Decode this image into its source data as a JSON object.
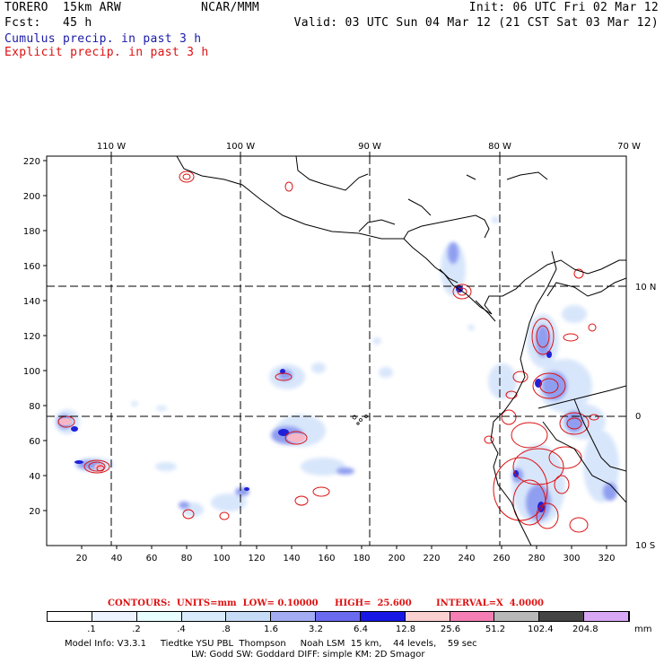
{
  "header": {
    "left1": "TORERO  15km ARW",
    "center1": "NCAR/MMM",
    "right1": "Init: 06 UTC Fri 02 Mar 12",
    "left2": "Fcst:   45 h",
    "right2": "Valid: 03 UTC Sun 04 Mar 12 (21 CST Sat 03 Mar 12)",
    "legend_cumulus": "Cumulus precip. in past 3 h",
    "legend_explicit": "Explicit precip. in past 3 h"
  },
  "colors": {
    "cumulus": "#1a1aa8",
    "explicit": "#dd1111",
    "coast": "#000000"
  },
  "map": {
    "top_lon_labels": [
      "110 W",
      "100 W",
      "90 W",
      "80 W",
      "70 W"
    ],
    "right_lat_labels": [
      "10 N",
      "0",
      "10 S"
    ],
    "y_ticks": [
      "20",
      "40",
      "60",
      "80",
      "100",
      "120",
      "140",
      "160",
      "180",
      "200",
      "220"
    ],
    "x_ticks": [
      "20",
      "40",
      "60",
      "80",
      "100",
      "120",
      "140",
      "160",
      "180",
      "200",
      "220",
      "240",
      "260",
      "280",
      "300",
      "320"
    ]
  },
  "contour_caption": {
    "units": "CONTOURS:  UNITS=mm  LOW= 0.10000",
    "high": "HIGH=  25.600",
    "interval": "INTERVAL=X  4.0000"
  },
  "colorbar": {
    "labels": [
      ".1",
      ".2",
      ".4",
      ".8",
      "1.6",
      "3.2",
      "6.4",
      "12.8",
      "25.6",
      "51.2",
      "102.4",
      "204.8"
    ],
    "unit": "mm",
    "colors": [
      "#ffffff",
      "#eef4ff",
      "#e8ffff",
      "#d8ecfb",
      "#c6dcf6",
      "#a3acf2",
      "#6a6af0",
      "#1818e6",
      "#fbd0d0",
      "#f57fb4",
      "#b8b8b8",
      "#444444",
      "#d9a8f5"
    ]
  },
  "footer": {
    "line1": "Model Info: V3.3.1     Tiedtke YSU PBL  Thompson     Noah LSM  15 km,    44 levels,    59 sec",
    "line2": "LW: Godd SW: Goddard DIFF: simple KM: 2D Smagor"
  }
}
